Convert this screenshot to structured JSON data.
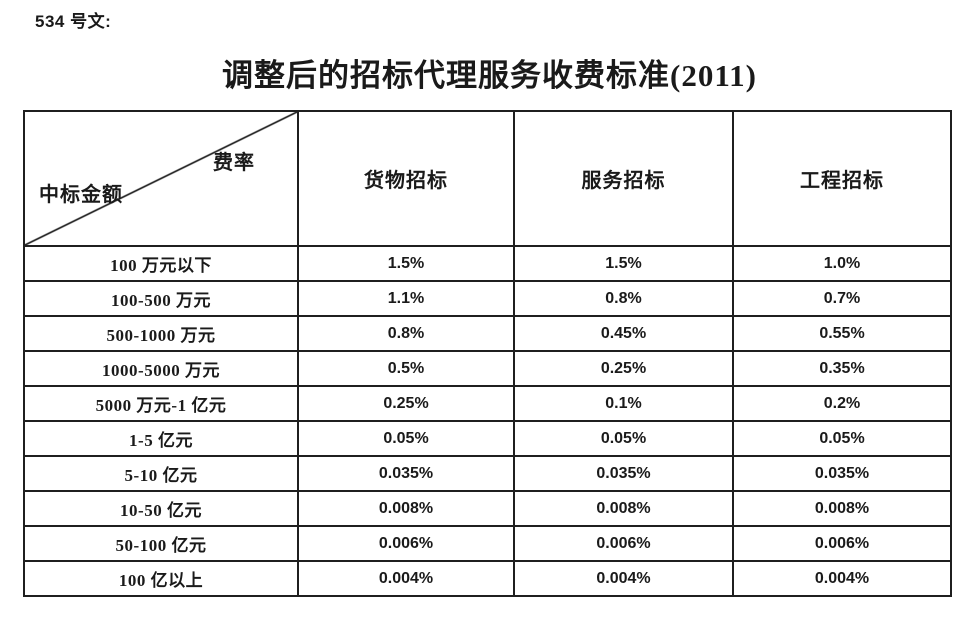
{
  "doc": {
    "ref_label": "534 号文:",
    "title": "调整后的招标代理服务收费标准(2011)"
  },
  "table": {
    "corner": {
      "top_right": "费率",
      "bottom_left": "中标金额"
    },
    "columns": [
      "货物招标",
      "服务招标",
      "工程招标"
    ],
    "rows": [
      {
        "amount": "100 万元以下",
        "goods": "1.5%",
        "services": "1.5%",
        "works": "1.0%"
      },
      {
        "amount": "100-500 万元",
        "goods": "1.1%",
        "services": "0.8%",
        "works": "0.7%"
      },
      {
        "amount": "500-1000 万元",
        "goods": "0.8%",
        "services": "0.45%",
        "works": "0.55%"
      },
      {
        "amount": "1000-5000 万元",
        "goods": "0.5%",
        "services": "0.25%",
        "works": "0.35%"
      },
      {
        "amount": "5000 万元-1 亿元",
        "goods": "0.25%",
        "services": "0.1%",
        "works": "0.2%"
      },
      {
        "amount": "1-5 亿元",
        "goods": "0.05%",
        "services": "0.05%",
        "works": "0.05%"
      },
      {
        "amount": "5-10 亿元",
        "goods": "0.035%",
        "services": "0.035%",
        "works": "0.035%"
      },
      {
        "amount": "10-50 亿元",
        "goods": "0.008%",
        "services": "0.008%",
        "works": "0.008%"
      },
      {
        "amount": "50-100 亿元",
        "goods": "0.006%",
        "services": "0.006%",
        "works": "0.006%"
      },
      {
        "amount": "100 亿以上",
        "goods": "0.004%",
        "services": "0.004%",
        "works": "0.004%"
      }
    ]
  }
}
